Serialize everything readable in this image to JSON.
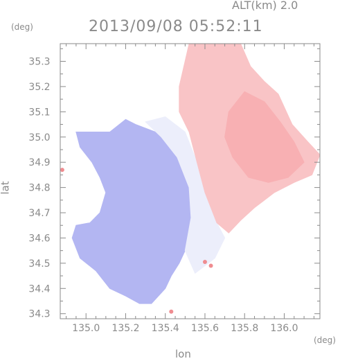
{
  "header": {
    "alt_label": "ALT(km) 2.0",
    "timestamp": "2013/09/08 05:52:11"
  },
  "chart_data": {
    "type": "heatmap",
    "title": "2013/09/08 05:52:11",
    "subtitle": "ALT(km) 2.0",
    "xlabel": "lon",
    "ylabel": "lat",
    "xunit": "(deg)",
    "yunit": "(deg)",
    "xlim": [
      134.87,
      136.18
    ],
    "ylim": [
      34.28,
      35.37
    ],
    "xticks": [
      {
        "value": 135.0,
        "label": "135.0"
      },
      {
        "value": 135.2,
        "label": "135.2"
      },
      {
        "value": 135.4,
        "label": "135.4"
      },
      {
        "value": 135.6,
        "label": "135.6"
      },
      {
        "value": 135.8,
        "label": "135.8"
      },
      {
        "value": 136.0,
        "label": "136.0"
      }
    ],
    "yticks": [
      {
        "value": 34.3,
        "label": "34.3"
      },
      {
        "value": 34.4,
        "label": "34.4"
      },
      {
        "value": 34.5,
        "label": "34.5"
      },
      {
        "value": 34.6,
        "label": "34.6"
      },
      {
        "value": 34.7,
        "label": "34.7"
      },
      {
        "value": 34.8,
        "label": "34.8"
      },
      {
        "value": 34.9,
        "label": "34.9"
      },
      {
        "value": 35.0,
        "label": "35.0"
      },
      {
        "value": 35.1,
        "label": "35.1"
      },
      {
        "value": 35.2,
        "label": "35.2"
      },
      {
        "value": 35.3,
        "label": "35.3"
      }
    ],
    "grid": false,
    "colors": {
      "negative": "#a9acf0",
      "neutral": "#f3f3fb",
      "positive": "#f8b6b8",
      "axis": "#8a8a8a"
    },
    "regions": [
      {
        "name": "echo-west",
        "fill": "#b3b6f2",
        "polygon": [
          [
            134.95,
            35.02
          ],
          [
            135.12,
            35.02
          ],
          [
            135.2,
            35.07
          ],
          [
            135.25,
            35.05
          ],
          [
            135.35,
            35.02
          ],
          [
            135.45,
            34.98
          ],
          [
            135.53,
            34.88
          ],
          [
            135.55,
            34.78
          ],
          [
            135.57,
            34.7
          ],
          [
            135.52,
            34.6
          ],
          [
            135.5,
            34.55
          ],
          [
            135.47,
            34.5
          ],
          [
            135.43,
            34.45
          ],
          [
            135.4,
            34.4
          ],
          [
            135.33,
            34.34
          ],
          [
            135.27,
            34.34
          ],
          [
            135.2,
            34.37
          ],
          [
            135.12,
            34.4
          ],
          [
            135.05,
            34.47
          ],
          [
            134.97,
            34.52
          ],
          [
            134.93,
            34.6
          ],
          [
            134.95,
            34.65
          ],
          [
            135.02,
            34.66
          ],
          [
            135.07,
            34.7
          ],
          [
            135.1,
            34.78
          ],
          [
            135.07,
            34.84
          ],
          [
            135.03,
            34.9
          ],
          [
            134.97,
            34.96
          ]
        ]
      },
      {
        "name": "echo-transition",
        "fill": "#eceefb",
        "polygon": [
          [
            135.3,
            35.06
          ],
          [
            135.4,
            35.08
          ],
          [
            135.5,
            35.02
          ],
          [
            135.56,
            34.9
          ],
          [
            135.6,
            34.78
          ],
          [
            135.66,
            34.66
          ],
          [
            135.7,
            34.6
          ],
          [
            135.65,
            34.52
          ],
          [
            135.55,
            34.46
          ],
          [
            135.5,
            34.55
          ],
          [
            135.53,
            34.68
          ],
          [
            135.52,
            34.8
          ],
          [
            135.46,
            34.92
          ],
          [
            135.38,
            35.0
          ]
        ]
      },
      {
        "name": "echo-east",
        "fill": "#f9c4c6",
        "polygon": [
          [
            135.47,
            35.2
          ],
          [
            135.52,
            35.37
          ],
          [
            135.78,
            35.37
          ],
          [
            135.83,
            35.28
          ],
          [
            135.9,
            35.22
          ],
          [
            135.97,
            35.17
          ],
          [
            136.04,
            35.05
          ],
          [
            136.12,
            34.98
          ],
          [
            136.18,
            34.93
          ],
          [
            136.14,
            34.85
          ],
          [
            136.05,
            34.82
          ],
          [
            135.95,
            34.78
          ],
          [
            135.85,
            34.72
          ],
          [
            135.78,
            34.67
          ],
          [
            135.72,
            34.62
          ],
          [
            135.66,
            34.66
          ],
          [
            135.6,
            34.78
          ],
          [
            135.56,
            34.9
          ],
          [
            135.52,
            35.02
          ],
          [
            135.47,
            35.1
          ]
        ]
      },
      {
        "name": "echo-east-core",
        "fill": "#f8b0b3",
        "polygon": [
          [
            135.72,
            35.1
          ],
          [
            135.8,
            35.18
          ],
          [
            135.9,
            35.14
          ],
          [
            135.98,
            35.06
          ],
          [
            136.05,
            34.98
          ],
          [
            136.1,
            34.9
          ],
          [
            136.02,
            34.84
          ],
          [
            135.92,
            34.82
          ],
          [
            135.82,
            34.84
          ],
          [
            135.74,
            34.92
          ],
          [
            135.7,
            35.0
          ]
        ]
      }
    ],
    "points": [
      {
        "lon": 135.6,
        "lat": 34.505,
        "value": "positive"
      },
      {
        "lon": 135.63,
        "lat": 34.49,
        "value": "positive"
      },
      {
        "lon": 135.43,
        "lat": 34.308,
        "value": "positive"
      },
      {
        "lon": 134.88,
        "lat": 34.87,
        "value": "positive"
      }
    ]
  }
}
